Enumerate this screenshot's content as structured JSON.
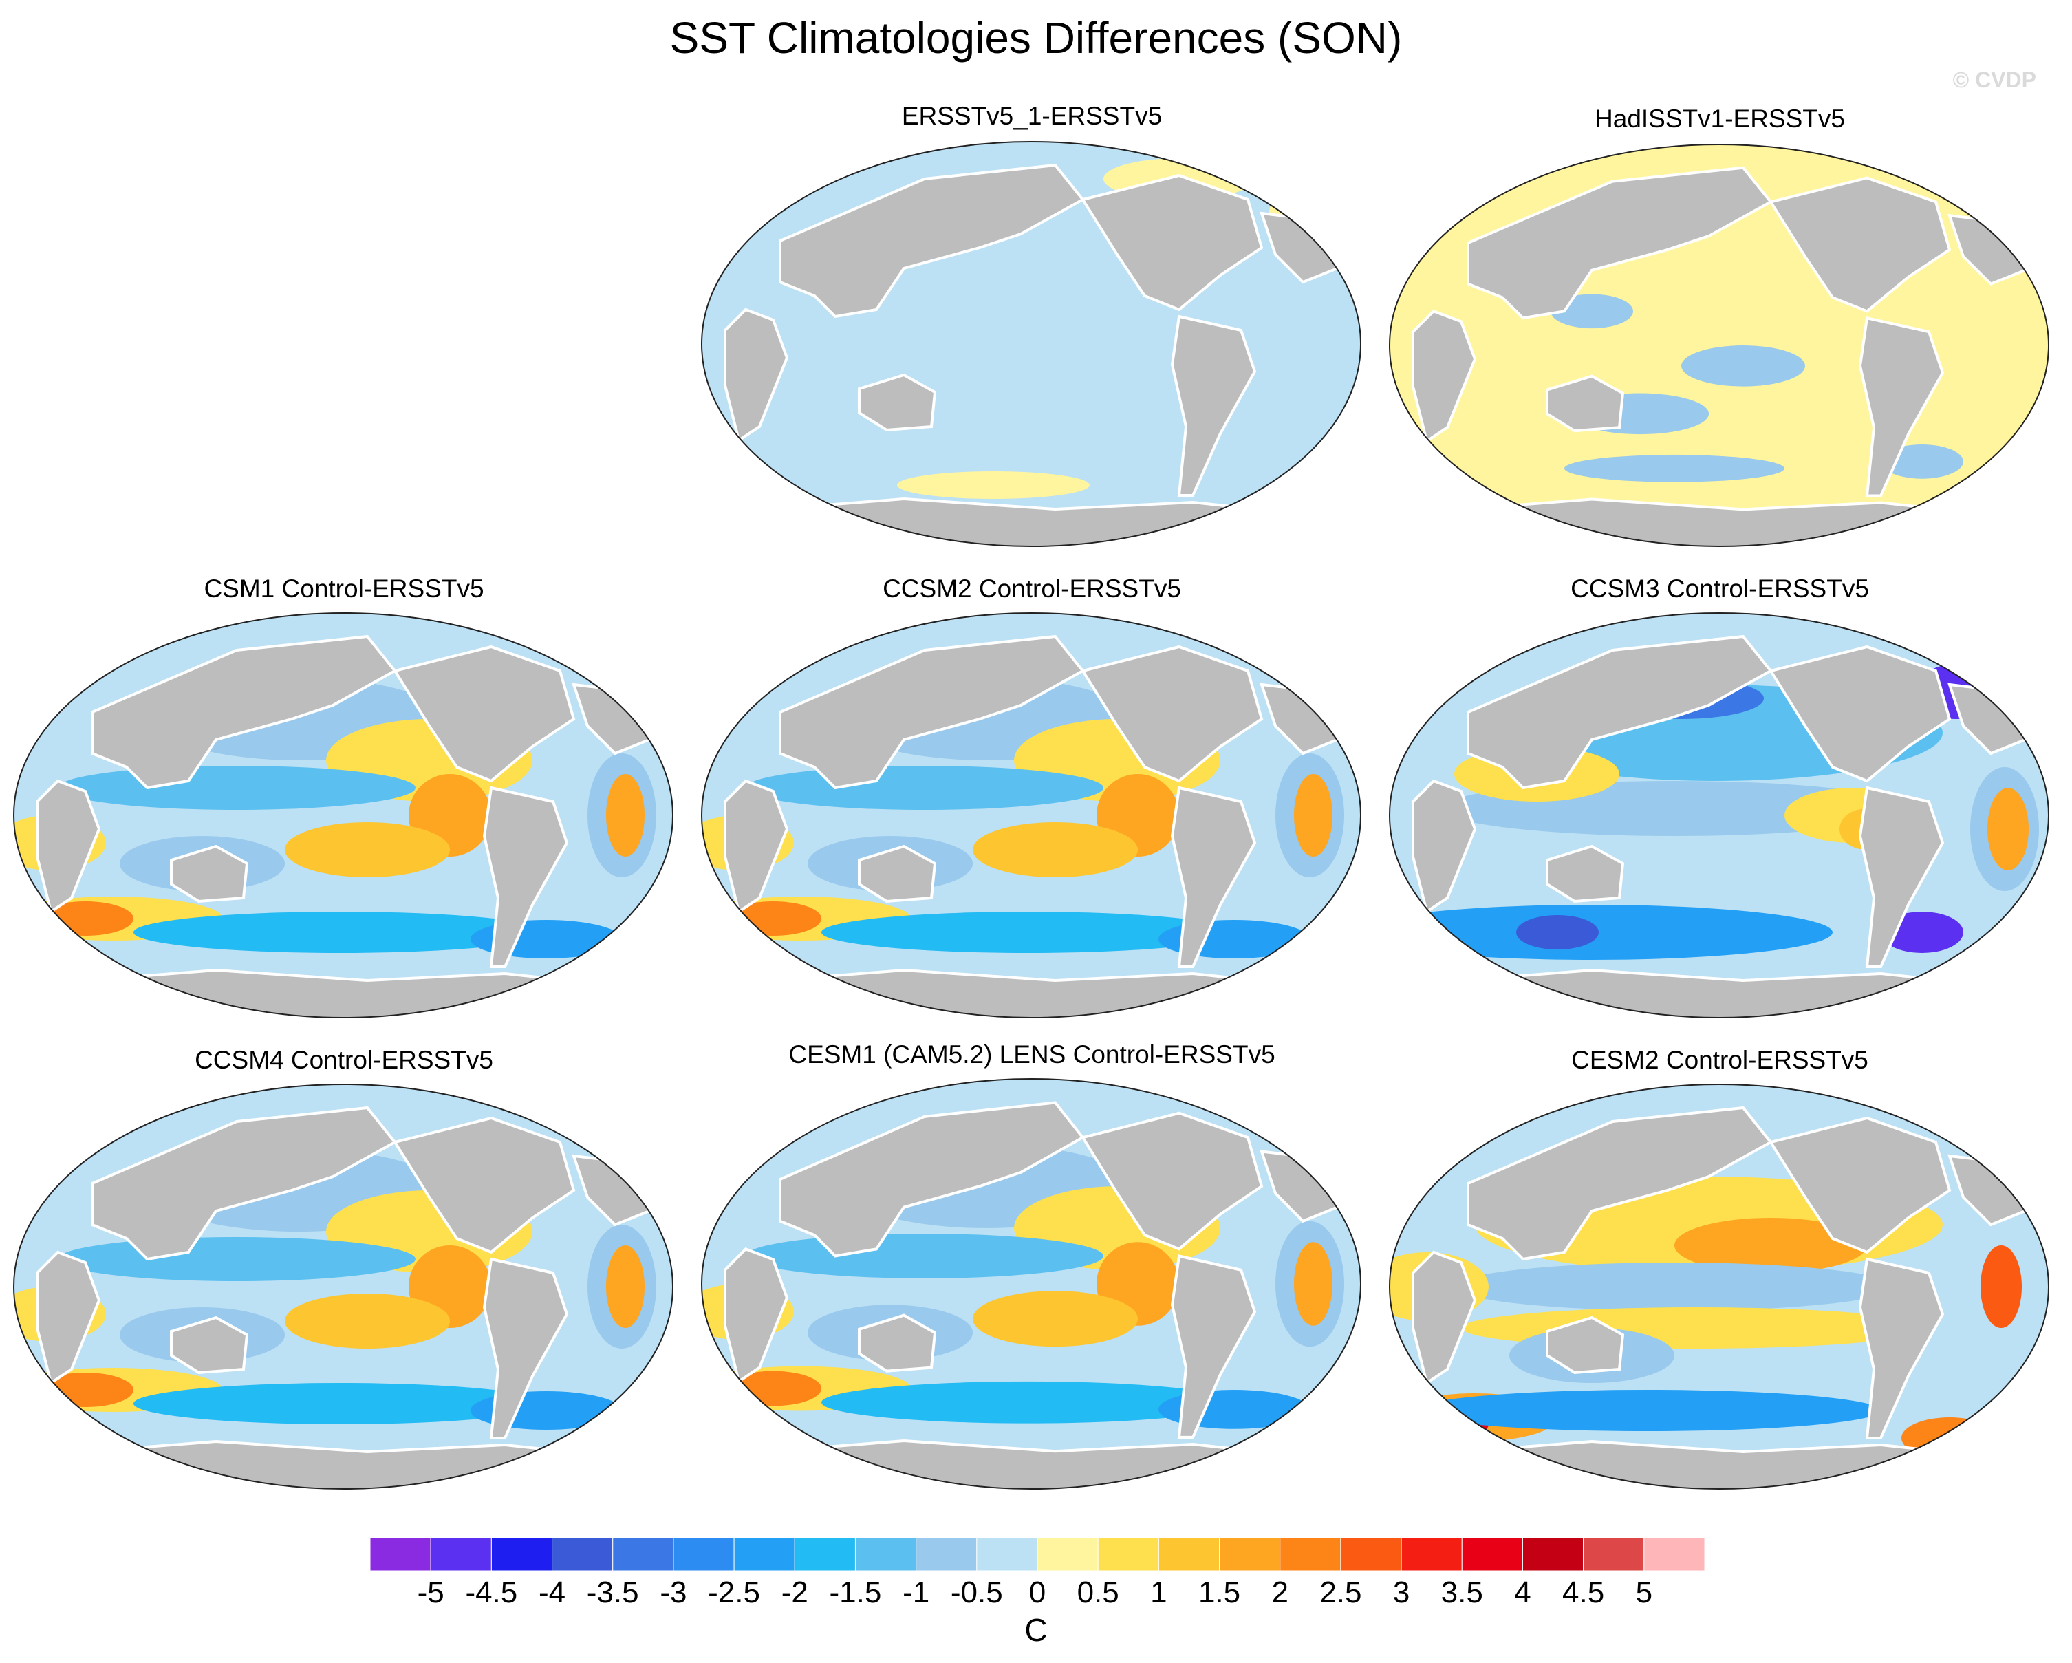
{
  "title": "SST Climatologies Differences (SON)",
  "watermark": "© CVDP",
  "panels": [
    {
      "title": "ERSSTv5_1-ERSSTv5",
      "pattern": "flat-cool"
    },
    {
      "title": "HadISSTv1-ERSSTv5",
      "pattern": "flat-warm"
    },
    {
      "title": "CSM1 Control-ERSSTv5",
      "pattern": "model"
    },
    {
      "title": "CCSM2 Control-ERSSTv5",
      "pattern": "model"
    },
    {
      "title": "CCSM3 Control-ERSSTv5",
      "pattern": "model-cold"
    },
    {
      "title": "CCSM4 Control-ERSSTv5",
      "pattern": "model"
    },
    {
      "title": "CESM1 (CAM5.2) LENS Control-ERSSTv5",
      "pattern": "model"
    },
    {
      "title": "CESM2 Control-ERSSTv5",
      "pattern": "model-warm"
    }
  ],
  "colorbar": {
    "labels": [
      "-5",
      "-4.5",
      "-4",
      "-3.5",
      "-3",
      "-2.5",
      "-2",
      "-1.5",
      "-1",
      "-0.5",
      "0",
      "0.5",
      "1",
      "1.5",
      "2",
      "2.5",
      "3",
      "3.5",
      "4",
      "4.5",
      "5"
    ],
    "colors": [
      "#8a2be2",
      "#5b30f0",
      "#1e1ef0",
      "#3a5ad8",
      "#3b78e6",
      "#2d8cf2",
      "#23a0f5",
      "#22bbf4",
      "#5bc0f0",
      "#99c9ec",
      "#bce0f4",
      "#fff59e",
      "#fedf4e",
      "#fdc52f",
      "#fea521",
      "#fd8416",
      "#fb5a12",
      "#f51e12",
      "#e80016",
      "#c40015",
      "#dd4747",
      "#ffb6b9"
    ],
    "units": "C"
  },
  "legend_colors": {
    "land": "#bdbdbd",
    "coastline": "#ffffff"
  }
}
